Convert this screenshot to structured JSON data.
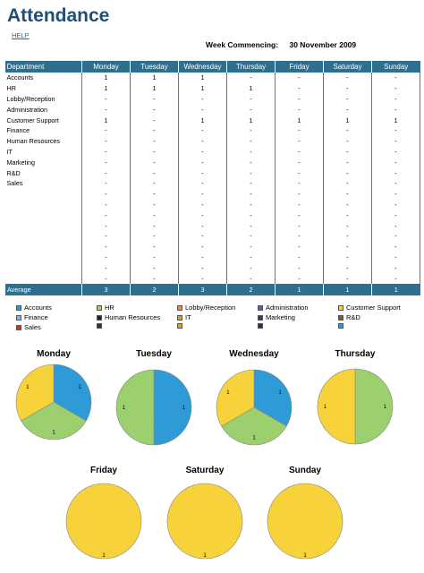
{
  "header": {
    "title": "Attendance",
    "help_label": "HELP",
    "week_label": "Week Commencing:",
    "week_value": "30 November 2009"
  },
  "table": {
    "columns": [
      "Department",
      "Monday",
      "Tuesday",
      "Wednesday",
      "Thursday",
      "Friday",
      "Saturday",
      "Sunday"
    ],
    "rows": [
      [
        "Accounts",
        "1",
        "1",
        "1",
        "-",
        "-",
        "-",
        "-"
      ],
      [
        "HR",
        "1",
        "1",
        "1",
        "1",
        "-",
        "-",
        "-"
      ],
      [
        "Lobby/Reception",
        "-",
        "-",
        "-",
        "-",
        "-",
        "-",
        "-"
      ],
      [
        "Administration",
        "-",
        "-",
        "-",
        "-",
        "-",
        "-",
        "-"
      ],
      [
        "Customer Support",
        "1",
        "-",
        "1",
        "1",
        "1",
        "1",
        "1"
      ],
      [
        "Finance",
        "-",
        "-",
        "-",
        "-",
        "-",
        "-",
        "-"
      ],
      [
        "Human Resources",
        "-",
        "-",
        "-",
        "-",
        "-",
        "-",
        "-"
      ],
      [
        "IT",
        "-",
        "-",
        "-",
        "-",
        "-",
        "-",
        "-"
      ],
      [
        "Marketing",
        "-",
        "-",
        "-",
        "-",
        "-",
        "-",
        "-"
      ],
      [
        "R&D",
        "-",
        "-",
        "-",
        "-",
        "-",
        "-",
        "-"
      ],
      [
        "Sales",
        "-",
        "-",
        "-",
        "-",
        "-",
        "-",
        "-"
      ],
      [
        "",
        "-",
        "-",
        "-",
        "-",
        "-",
        "-",
        "-"
      ],
      [
        "",
        "-",
        "-",
        "-",
        "-",
        "-",
        "-",
        "-"
      ],
      [
        "",
        "-",
        "-",
        "-",
        "-",
        "-",
        "-",
        "-"
      ],
      [
        "",
        "-",
        "-",
        "-",
        "-",
        "-",
        "-",
        "-"
      ],
      [
        "",
        "-",
        "-",
        "-",
        "-",
        "-",
        "-",
        "-"
      ],
      [
        "",
        "-",
        "-",
        "-",
        "-",
        "-",
        "-",
        "-"
      ],
      [
        "",
        "-",
        "-",
        "-",
        "-",
        "-",
        "-",
        "-"
      ],
      [
        "",
        "-",
        "-",
        "-",
        "-",
        "-",
        "-",
        "-"
      ],
      [
        "",
        "-",
        "-",
        "-",
        "-",
        "-",
        "-",
        "-"
      ]
    ],
    "average": [
      "Average",
      "3",
      "2",
      "3",
      "2",
      "1",
      "1",
      "1"
    ]
  },
  "legend": [
    {
      "label": "Accounts",
      "color": "#2e9bd6"
    },
    {
      "label": "HR",
      "color": "#9ccf6e"
    },
    {
      "label": "Lobby/Reception",
      "color": "#e58a4a"
    },
    {
      "label": "Administration",
      "color": "#7a4fa0"
    },
    {
      "label": "Customer Support",
      "color": "#f7d23a"
    },
    {
      "label": "Finance",
      "color": "#7fb8e0"
    },
    {
      "label": "Human Resources",
      "color": "#222222"
    },
    {
      "label": "IT",
      "color": "#c9a03a"
    },
    {
      "label": "Marketing",
      "color": "#3a3a6e"
    },
    {
      "label": "R&D",
      "color": "#556b2f"
    },
    {
      "label": "Sales",
      "color": "#c0392b"
    },
    {
      "label": "",
      "color": "#2a2f5e"
    },
    {
      "label": "",
      "color": "#e39a3c"
    },
    {
      "label": "",
      "color": "#3b2a4e"
    },
    {
      "label": "",
      "color": "#7aa43a"
    },
    {
      "label": "",
      "color": "#2aa0d0"
    }
  ],
  "chart_data": [
    {
      "type": "pie",
      "title": "Monday",
      "slices": [
        {
          "name": "Accounts",
          "value": 1,
          "color": "#2e9bd6"
        },
        {
          "name": "HR",
          "value": 1,
          "color": "#9ccf6e"
        },
        {
          "name": "Customer Support",
          "value": 1,
          "color": "#f7d23a"
        }
      ]
    },
    {
      "type": "pie",
      "title": "Tuesday",
      "slices": [
        {
          "name": "Accounts",
          "value": 1,
          "color": "#2e9bd6"
        },
        {
          "name": "HR",
          "value": 1,
          "color": "#9ccf6e"
        }
      ]
    },
    {
      "type": "pie",
      "title": "Wednesday",
      "slices": [
        {
          "name": "Accounts",
          "value": 1,
          "color": "#2e9bd6"
        },
        {
          "name": "HR",
          "value": 1,
          "color": "#9ccf6e"
        },
        {
          "name": "Customer Support",
          "value": 1,
          "color": "#f7d23a"
        }
      ]
    },
    {
      "type": "pie",
      "title": "Thursday",
      "slices": [
        {
          "name": "HR",
          "value": 1,
          "color": "#9ccf6e"
        },
        {
          "name": "Customer Support",
          "value": 1,
          "color": "#f7d23a"
        }
      ]
    },
    {
      "type": "pie",
      "title": "Friday",
      "slices": [
        {
          "name": "Customer Support",
          "value": 1,
          "color": "#f7d23a"
        }
      ]
    },
    {
      "type": "pie",
      "title": "Saturday",
      "slices": [
        {
          "name": "Customer Support",
          "value": 1,
          "color": "#f7d23a"
        }
      ]
    },
    {
      "type": "pie",
      "title": "Sunday",
      "slices": [
        {
          "name": "Customer Support",
          "value": 1,
          "color": "#f7d23a"
        }
      ]
    }
  ]
}
